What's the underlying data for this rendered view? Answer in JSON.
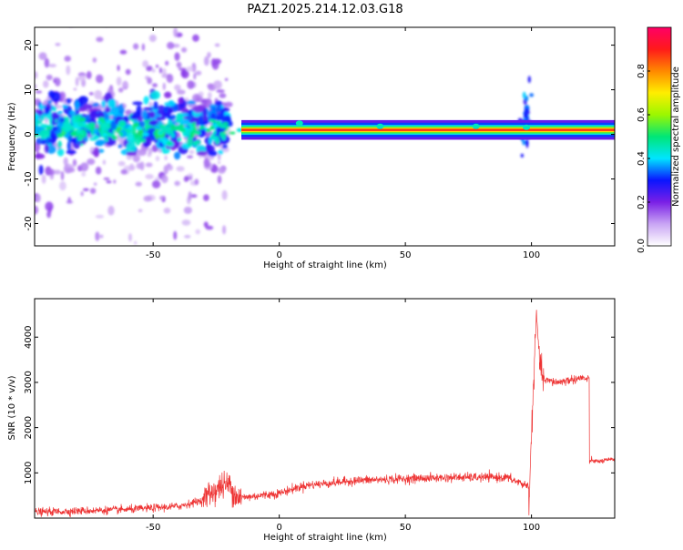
{
  "title": "PAZ1.2025.214.12.03.G18",
  "chart_data": [
    {
      "type": "heatmap",
      "xlabel": "Height of straight line (km)",
      "ylabel": "Frequency (Hz)",
      "xlim": [
        -97,
        133
      ],
      "ylim": [
        -25,
        24
      ],
      "xticks": [
        -50,
        0,
        50,
        100
      ],
      "yticks": [
        -20,
        -10,
        0,
        10,
        20
      ],
      "colorbar": {
        "label": "Normalized spectral amplitude",
        "range": [
          0,
          1
        ],
        "ticks": [
          "0.0",
          "0.2",
          "0.4",
          "0.6",
          "0.8"
        ],
        "colors": [
          "#ffffff",
          "#c9a5f4",
          "#7a1fe6",
          "#0a15ff",
          "#00e5ff",
          "#00e676",
          "#9cf700",
          "#ffee00",
          "#ff8800",
          "#ff1a1a",
          "#ff0066"
        ]
      },
      "features": [
        {
          "x_range": [
            -97,
            -20
          ],
          "freq_center": 1,
          "freq_spread": 18,
          "amplitude": 0.15,
          "note": "scattered weak noise"
        },
        {
          "x_range": [
            -97,
            -20
          ],
          "freq_center": 2,
          "freq_spread": 6,
          "amplitude": 0.3
        },
        {
          "x_range": [
            -15,
            133
          ],
          "freq_center": 1,
          "freq_spread": 0.6,
          "amplitude": 0.95
        },
        {
          "x": 98,
          "freq_center": 3,
          "freq_spread": 8,
          "amplitude": 0.3
        }
      ]
    },
    {
      "type": "line",
      "xlabel": "Height of straight line (km)",
      "ylabel": "SNR (10 * v/v)",
      "xlim": [
        -97,
        133
      ],
      "ylim": [
        0,
        4850
      ],
      "xticks": [
        -50,
        0,
        50,
        100
      ],
      "yticks": [
        1000,
        2000,
        3000,
        4000
      ],
      "color": "#ee3333",
      "segments": [
        {
          "x": [
            -97,
            -60,
            -40,
            -30
          ],
          "y": [
            130,
            190,
            260,
            400
          ],
          "noise": 80
        },
        {
          "x": [
            -30,
            -23,
            -20,
            -17,
            -15
          ],
          "y": [
            450,
            700,
            750,
            500,
            450
          ],
          "noise": 280
        },
        {
          "x": [
            -15,
            0,
            10,
            30,
            50,
            70,
            90,
            99
          ],
          "y": [
            450,
            550,
            720,
            830,
            870,
            900,
            900,
            700
          ],
          "noise": 90
        },
        {
          "x": [
            99,
            100,
            101,
            102,
            103,
            104,
            105
          ],
          "y": [
            300,
            1800,
            3200,
            4500,
            3600,
            3200,
            3050
          ],
          "noise": 250
        },
        {
          "x": [
            105,
            110,
            115,
            120,
            123
          ],
          "y": [
            3050,
            3000,
            3050,
            3100,
            3050
          ],
          "noise": 90
        },
        {
          "x": [
            123,
            124,
            126,
            133
          ],
          "y": [
            1250,
            1280,
            1250,
            1300
          ],
          "noise": 50
        }
      ]
    }
  ]
}
